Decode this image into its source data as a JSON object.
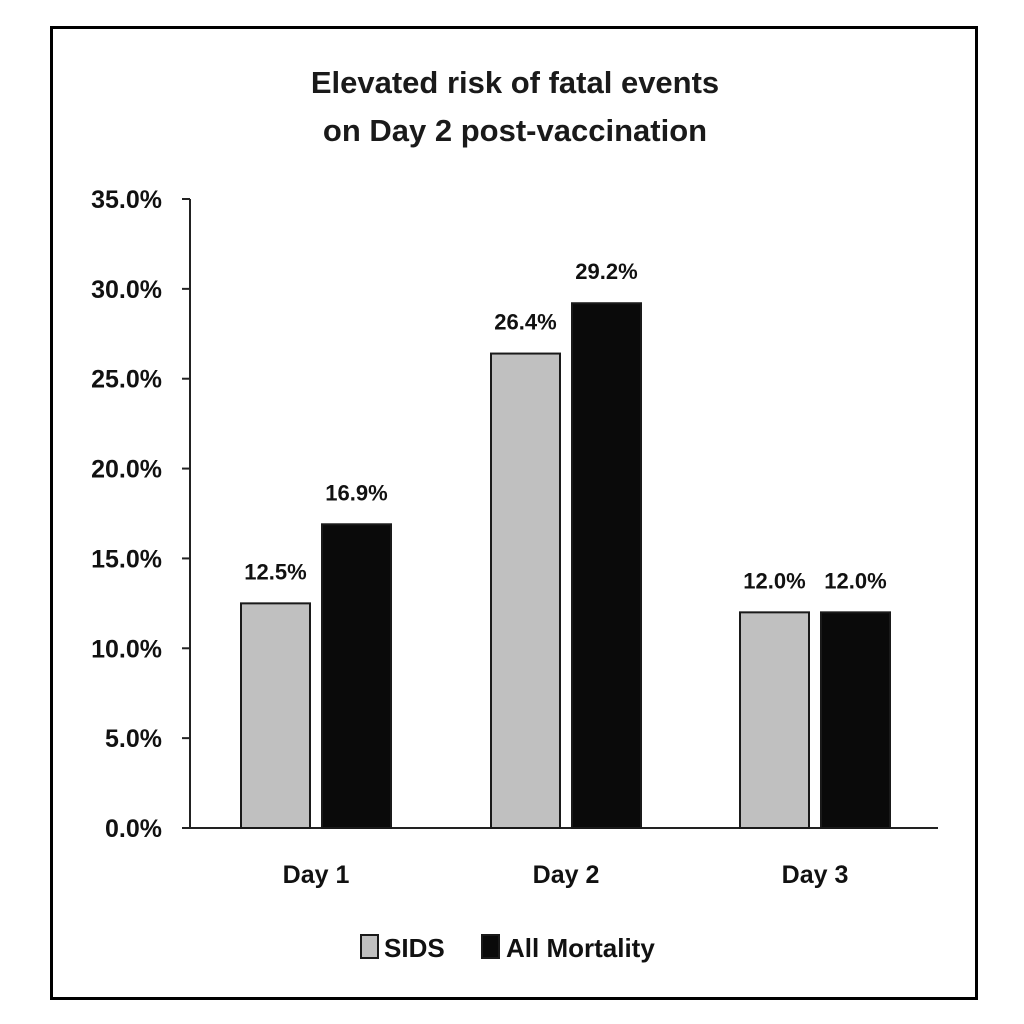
{
  "chart_data": {
    "type": "bar",
    "title": [
      "Elevated risk of fatal events",
      "on Day 2 post-vaccination"
    ],
    "categories": [
      "Day 1",
      "Day 2",
      "Day 3"
    ],
    "series": [
      {
        "name": "SIDS",
        "values": [
          12.5,
          26.4,
          12.0
        ],
        "color": "#c0c0c0"
      },
      {
        "name": "All Mortality",
        "values": [
          16.9,
          29.2,
          12.0
        ],
        "color": "#0a0a0a"
      }
    ],
    "data_labels": [
      [
        "12.5%",
        "26.4%",
        "12.0%"
      ],
      [
        "16.9%",
        "29.2%",
        "12.0%"
      ]
    ],
    "y_ticks": [
      "0.0%",
      "5.0%",
      "10.0%",
      "15.0%",
      "20.0%",
      "25.0%",
      "30.0%",
      "35.0%"
    ],
    "ylim": [
      0,
      35
    ],
    "xlabel": "",
    "ylabel": "",
    "grid": false,
    "legend_position": "bottom-center",
    "colors": {
      "frame": "#000000",
      "axis": "#222222",
      "bar_stroke": "#1a1a1a"
    }
  }
}
